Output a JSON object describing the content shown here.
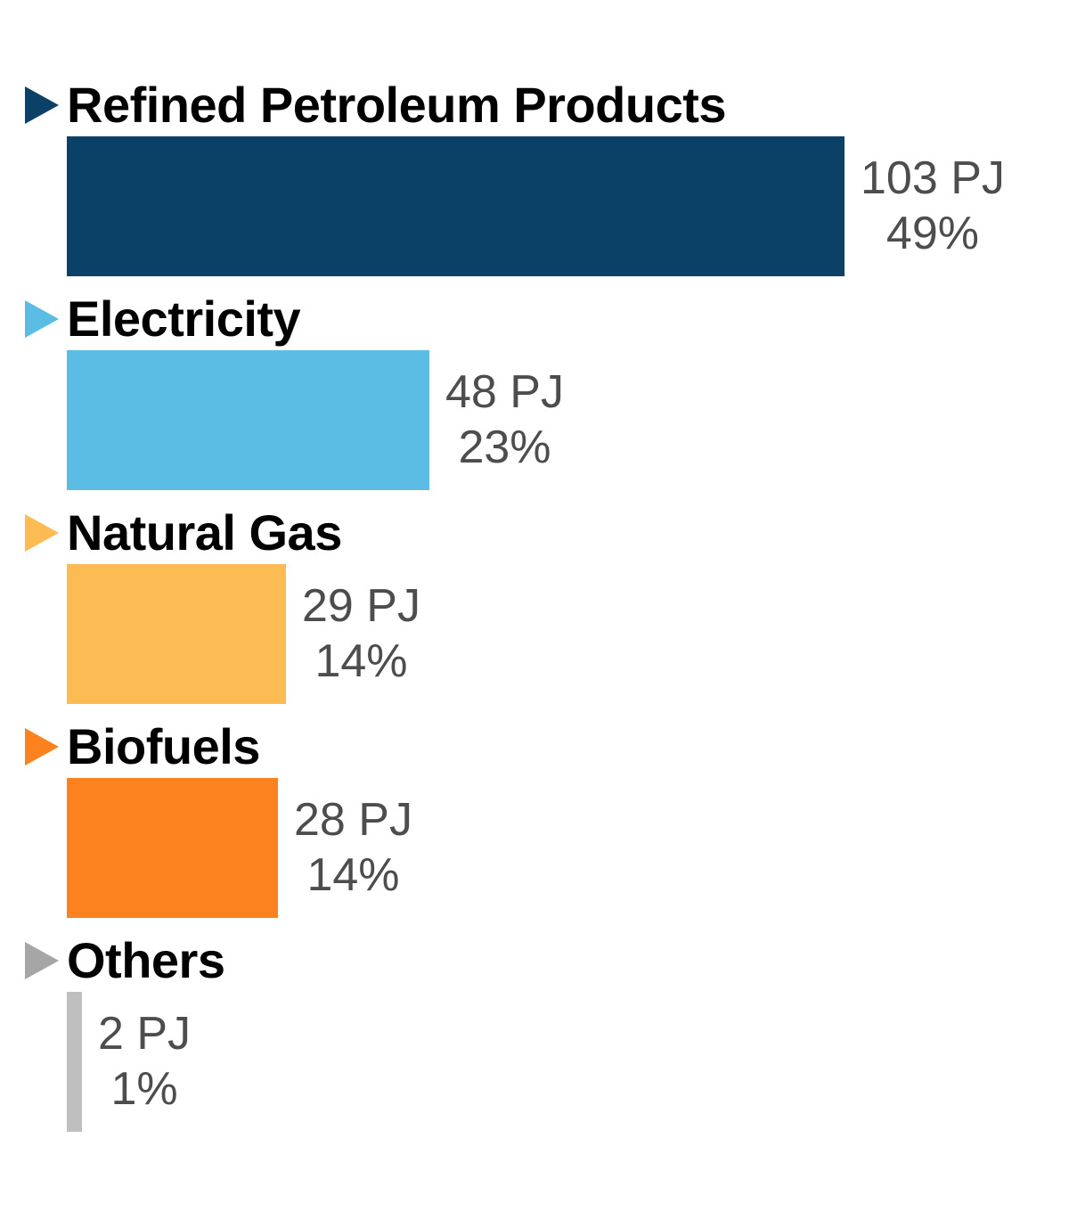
{
  "chart_data": {
    "type": "bar",
    "orientation": "horizontal",
    "title": "",
    "unit": "PJ",
    "grid": false,
    "legend_position": "none",
    "axis_labels": "none",
    "categories": [
      "Refined Petroleum Products",
      "Electricity",
      "Natural Gas",
      "Biofuels",
      "Others"
    ],
    "values": [
      103,
      48,
      29,
      28,
      2
    ],
    "percents": [
      49,
      23,
      14,
      14,
      1
    ],
    "label_text_color": "#000000",
    "value_text_color": "#4d4d4d",
    "series": [
      {
        "label": "Refined Petroleum Products",
        "value_pj": 103,
        "value_label": "103 PJ",
        "percent_label": "49%",
        "bar_color": "#0c4167",
        "marker_color": "#0c4167"
      },
      {
        "label": "Electricity",
        "value_pj": 48,
        "value_label": "48 PJ",
        "percent_label": "23%",
        "bar_color": "#5bbde4",
        "marker_color": "#5bbde4"
      },
      {
        "label": "Natural Gas",
        "value_pj": 29,
        "value_label": "29 PJ",
        "percent_label": "14%",
        "bar_color": "#fdbc53",
        "marker_color": "#fdbc53"
      },
      {
        "label": "Biofuels",
        "value_pj": 28,
        "value_label": "28 PJ",
        "percent_label": "14%",
        "bar_color": "#fb821e",
        "marker_color": "#fb821e"
      },
      {
        "label": "Others",
        "value_pj": 2,
        "value_label": "2 PJ",
        "percent_label": "1%",
        "bar_color": "#bfbfbf",
        "marker_color": "#a6a6a6"
      }
    ]
  }
}
